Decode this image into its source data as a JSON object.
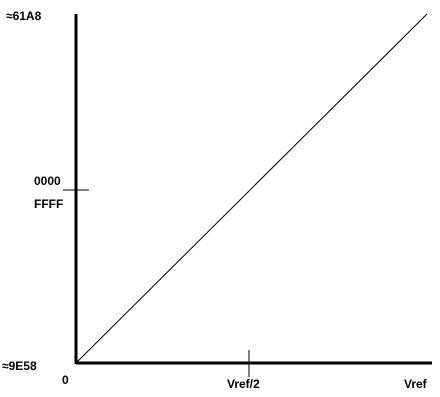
{
  "chart_data": {
    "type": "line",
    "title": "",
    "xlabel": "",
    "ylabel": "",
    "x_tick_labels": [
      "0",
      "Vref/2",
      "Vref"
    ],
    "y_tick_labels": {
      "top": "≈61A8",
      "mid_upper": "0000",
      "mid_lower": "FFFF",
      "bottom": "≈9E58"
    },
    "x_range": [
      0,
      1
    ],
    "y_range": [
      -1,
      1
    ],
    "grid": false,
    "series": [
      {
        "x": [
          0,
          1
        ],
        "y": [
          -1,
          1
        ]
      }
    ],
    "colors": {
      "axis": "#000000",
      "line": "#000000"
    }
  }
}
